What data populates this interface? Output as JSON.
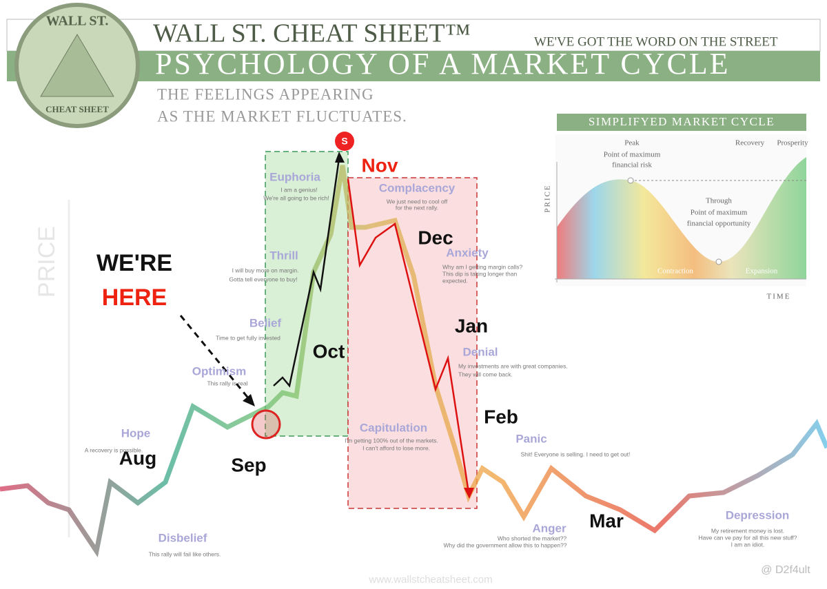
{
  "header": {
    "logo": [
      "WALL ST.",
      "CHEAT SHEET"
    ],
    "brand": "WALL ST. CHEAT SHEET™",
    "tagline": "WE'VE GOT THE WORD ON THE STREET",
    "title": "PSYCHOLOGY OF A MARKET CYCLE",
    "subtitle": [
      "THE FEELINGS APPEARING",
      "AS THE MARKET FLUCTUATES."
    ]
  },
  "axis_label": "PRICE",
  "stages": [
    {
      "name": "Hope",
      "caption": [
        "A recovery is possible."
      ]
    },
    {
      "name": "Disbelief",
      "caption": [
        "This rally will fail like others."
      ]
    },
    {
      "name": "Optimism",
      "caption": [
        "This rally is real"
      ]
    },
    {
      "name": "Belief",
      "caption": [
        "Time to get fully invested"
      ]
    },
    {
      "name": "Thrill",
      "caption": [
        "I will buy more on margin.",
        "Gotta tell everyone to buy!"
      ]
    },
    {
      "name": "Euphoria",
      "caption": [
        "I am a genius!",
        "We're all going to be rich!"
      ]
    },
    {
      "name": "Complacency",
      "caption": [
        "We just need to cool off",
        "for the next rally."
      ]
    },
    {
      "name": "Anxiety",
      "caption": [
        "Why am I getting margin calls?",
        "This dip is taking longer than",
        "expected."
      ]
    },
    {
      "name": "Denial",
      "caption": [
        "My investments are with great companies.",
        "They will come back."
      ]
    },
    {
      "name": "Panic",
      "caption": [
        "Shit! Everyone is selling. I need to get out!"
      ]
    },
    {
      "name": "Capitulation",
      "caption": [
        "I'm getting 100% out of the markets.",
        "I can't afford to lose more."
      ]
    },
    {
      "name": "Anger",
      "caption": [
        "Who shorted the market??",
        "Why did the government allow this to happen??"
      ]
    },
    {
      "name": "Depression",
      "caption": [
        "My retirement money is lost.",
        "Have can ve pay for all this new stuff?",
        "I am an idiot."
      ]
    }
  ],
  "months": [
    "Aug",
    "Sep",
    "Oct",
    "Nov",
    "Dec",
    "Jan",
    "Feb",
    "Mar"
  ],
  "callout": [
    "WE'RE",
    "HERE"
  ],
  "marker": "S",
  "inset": {
    "title": "SIMPLIFYED MARKET CYCLE",
    "peak": [
      "Peak",
      "Point of maximum",
      "financial risk"
    ],
    "trough": [
      "Through",
      "Point of maximum",
      "financial opportunity"
    ],
    "recovery": "Recovery",
    "prosperity": "Prosperity",
    "contraction": "Contraction",
    "expansion": "Expansion",
    "y_label": "PRICE",
    "x_label": "TIME"
  },
  "footer": {
    "url": "www.wallstcheatsheet.com",
    "watermark": "@ D2f4ult"
  }
}
